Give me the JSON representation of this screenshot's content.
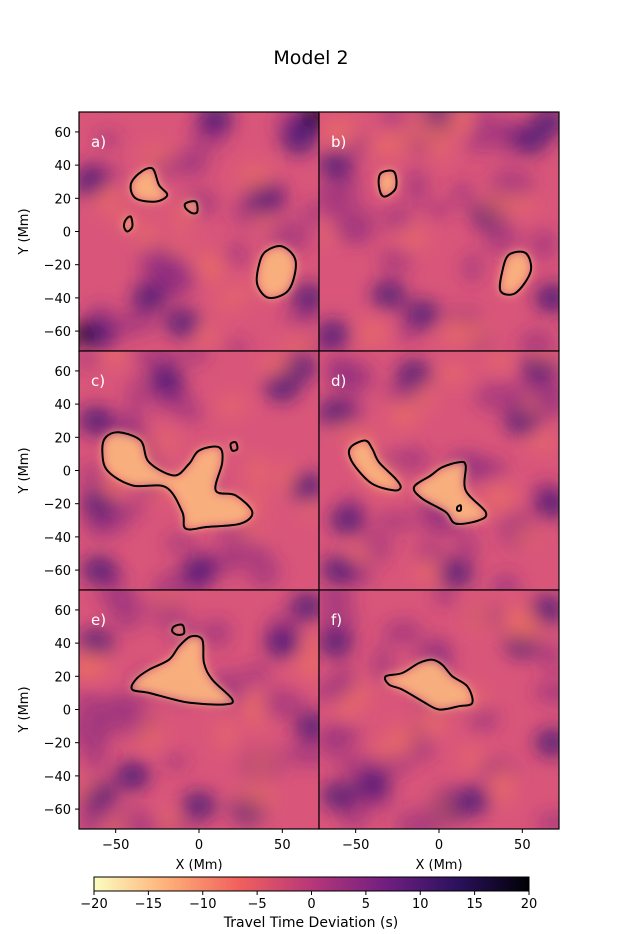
{
  "figure": {
    "title": "Model 2"
  },
  "chart_data": [
    {
      "type": "heatmap",
      "panel_label": "a)",
      "xlim": [
        -72,
        72
      ],
      "ylim": [
        -72,
        72
      ],
      "xticks": [
        -50,
        0,
        50
      ],
      "yticks": [
        60,
        40,
        20,
        0,
        -20,
        -40,
        -60
      ],
      "ylabel": "Y (Mm)",
      "xlabel": "",
      "contour_regions_center_mm": [
        [
          -30,
          27
        ],
        [
          -42,
          5
        ],
        [
          -4,
          15
        ],
        [
          46,
          -24
        ]
      ]
    },
    {
      "type": "heatmap",
      "panel_label": "b)",
      "xlim": [
        -72,
        72
      ],
      "ylim": [
        -72,
        72
      ],
      "xticks": [
        -50,
        0,
        50
      ],
      "yticks": [
        60,
        40,
        20,
        0,
        -20,
        -40,
        -60
      ],
      "ylabel": "",
      "xlabel": "",
      "contour_regions_center_mm": [
        [
          -31,
          28
        ],
        [
          45,
          -25
        ]
      ]
    },
    {
      "type": "heatmap",
      "panel_label": "c)",
      "xlim": [
        -72,
        72
      ],
      "ylim": [
        -72,
        72
      ],
      "xticks": [
        -50,
        0,
        50
      ],
      "yticks": [
        60,
        40,
        20,
        0,
        -20,
        -40,
        -60
      ],
      "ylabel": "Y (Mm)",
      "xlabel": "",
      "contour_regions_center_mm": [
        [
          -15,
          -8
        ],
        [
          21,
          14
        ]
      ]
    },
    {
      "type": "heatmap",
      "panel_label": "d)",
      "xlim": [
        -72,
        72
      ],
      "ylim": [
        -72,
        72
      ],
      "xticks": [
        -50,
        0,
        50
      ],
      "yticks": [
        60,
        40,
        20,
        0,
        -20,
        -40,
        -60
      ],
      "ylabel": "",
      "xlabel": "",
      "contour_regions_center_mm": [
        [
          -38,
          5
        ],
        [
          10,
          -12
        ]
      ]
    },
    {
      "type": "heatmap",
      "panel_label": "e)",
      "xlim": [
        -72,
        72
      ],
      "ylim": [
        -72,
        72
      ],
      "xticks": [
        -50,
        0,
        50
      ],
      "yticks": [
        60,
        40,
        20,
        0,
        -20,
        -40,
        -60
      ],
      "ylabel": "Y (Mm)",
      "xlabel": "X (Mm)",
      "contour_regions_center_mm": [
        [
          -5,
          15
        ],
        [
          -12,
          48
        ]
      ]
    },
    {
      "type": "heatmap",
      "panel_label": "f)",
      "xlim": [
        -72,
        72
      ],
      "ylim": [
        -72,
        72
      ],
      "xticks": [
        -50,
        0,
        50
      ],
      "yticks": [
        60,
        40,
        20,
        0,
        -20,
        -40,
        -60
      ],
      "ylabel": "",
      "xlabel": "X (Mm)",
      "contour_regions_center_mm": [
        [
          -3,
          13
        ]
      ]
    }
  ],
  "colorbar": {
    "label": "Travel Time Deviation (s)",
    "min": -20,
    "max": 20,
    "ticks": [
      -20,
      -15,
      -10,
      -5,
      0,
      5,
      10,
      15,
      20
    ],
    "colormap_stops": [
      "#fcfdbf",
      "#feb078",
      "#f1605d",
      "#b73779",
      "#721f81",
      "#2c115f",
      "#000004"
    ]
  },
  "colors": {
    "background_mid": "#d9567a",
    "contour": "#000000"
  }
}
